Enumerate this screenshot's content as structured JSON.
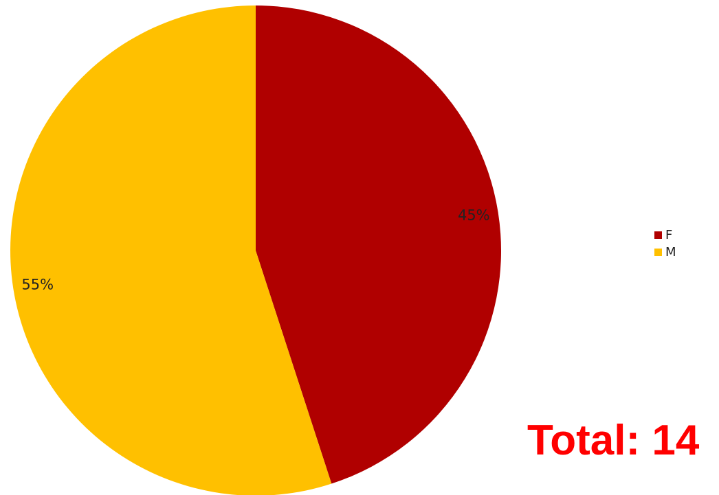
{
  "chart_data": {
    "type": "pie",
    "categories": [
      "F",
      "M"
    ],
    "values": [
      45,
      55
    ],
    "value_labels": [
      "45%",
      "55%"
    ],
    "colors": [
      "#b00000",
      "#ffc000"
    ],
    "start_angle": "top, clockwise",
    "legend_position": "right"
  },
  "legend": {
    "items": [
      {
        "label": "F",
        "color": "#b00000"
      },
      {
        "label": "M",
        "color": "#ffc000"
      }
    ]
  },
  "total_text": "Total: 14"
}
